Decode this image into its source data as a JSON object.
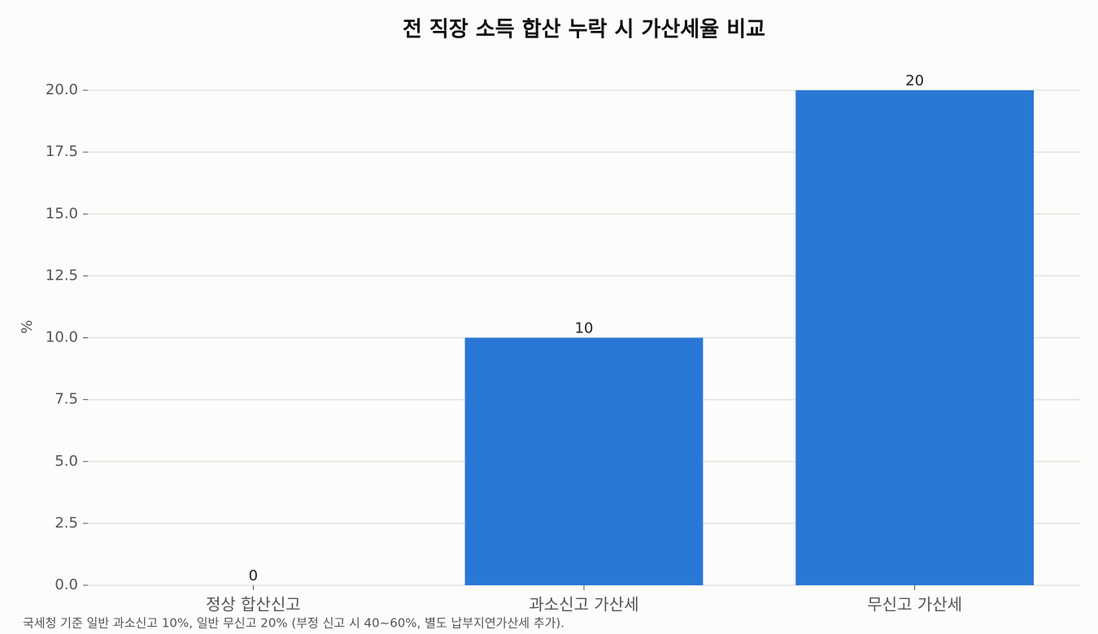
{
  "chart_data": {
    "type": "bar",
    "title": "전 직장 소득 합산 누락 시 가산세율 비교",
    "ylabel": "%",
    "categories": [
      "정상 합산신고",
      "과소신고 가산세",
      "무신고 가산세"
    ],
    "values": [
      0,
      10,
      20
    ],
    "color": "#2a78d6",
    "ylim": [
      0,
      20
    ],
    "yticks": [
      {
        "value": 0,
        "label": "0.0"
      },
      {
        "value": 2.5,
        "label": "2.5"
      },
      {
        "value": 5,
        "label": "5.0"
      },
      {
        "value": 7.5,
        "label": "7.5"
      },
      {
        "value": 10,
        "label": "10.0"
      },
      {
        "value": 12.5,
        "label": "12.5"
      },
      {
        "value": 15,
        "label": "15.0"
      },
      {
        "value": 17.5,
        "label": "17.5"
      },
      {
        "value": 20,
        "label": "20.0"
      }
    ],
    "grid": true,
    "annotation": "국세청 기준 일반 과소신고 10%, 일반 무신고 20% (부정 신고 시 40~60%, 별도 납부지연가산세 추가)."
  }
}
